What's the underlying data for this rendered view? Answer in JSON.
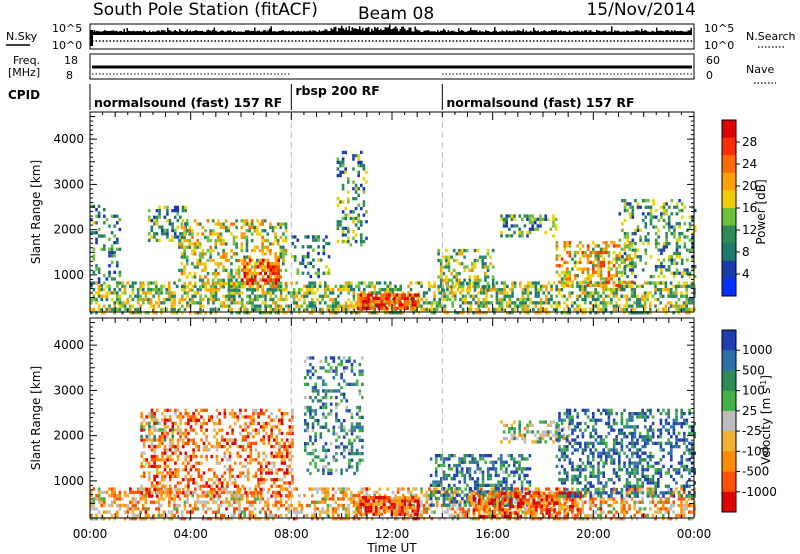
{
  "header": {
    "title": "South Pole Station (fitACF)",
    "beam": "Beam 08",
    "date": "15/Nov/2014"
  },
  "status_panels": {
    "nsky_label": "N.Sky",
    "nsky_tick_top": "10^5",
    "nsky_tick_bottom": "10^0",
    "nsearch_label": "N.Search",
    "nsearch_tick_top": "10^5",
    "nsearch_tick_bottom": "10^0",
    "freq_label_1": "Freq.",
    "freq_label_2": "[MHz]",
    "freq_tick_top": "18",
    "freq_tick_bottom": "8",
    "nave_label": "Nave",
    "nave_tick_top": "60",
    "nave_tick_bottom": "0",
    "cpid_label": "CPID"
  },
  "cpid_segments": [
    {
      "label": "normalsound (fast) 157 RF",
      "start_hour": 0,
      "end_hour": 8
    },
    {
      "label": "rbsp 200 RF",
      "start_hour": 8,
      "end_hour": 14
    },
    {
      "label": "normalsound (fast) 157 RF",
      "start_hour": 14,
      "end_hour": 24
    }
  ],
  "chart_data": [
    {
      "type": "heatmap",
      "panel": "power",
      "ylabel": "Slant Range [km]",
      "xlabel": "Time UT",
      "x_ticks": [
        "00:00",
        "04:00",
        "08:00",
        "12:00",
        "16:00",
        "20:00",
        "00:00"
      ],
      "xlim_hours": [
        0,
        24
      ],
      "ylim": [
        180,
        4600
      ],
      "y_ticks": [
        1000,
        2000,
        3000,
        4000
      ],
      "colorbar_label": "Power [dB]",
      "colorbar_ticks": [
        "28",
        "24",
        "20",
        "16",
        "12",
        "8",
        "4"
      ],
      "colorbar_colors": [
        "#e00000",
        "#ff3000",
        "#ff6a00",
        "#ffa000",
        "#f0cf00",
        "#6bbf3a",
        "#2e8b57",
        "#1e7a6c",
        "#1a3aa8",
        "#0030ff"
      ],
      "scatter_regions": [
        {
          "t0": 0.0,
          "t1": 24.0,
          "r0": 200,
          "r1": 900,
          "density": 0.55,
          "level": 0.45
        },
        {
          "t0": 0.0,
          "t1": 1.2,
          "r0": 800,
          "r1": 2600,
          "density": 0.25,
          "level": 0.3
        },
        {
          "t0": 2.3,
          "t1": 3.8,
          "r0": 1800,
          "r1": 2600,
          "density": 0.45,
          "level": 0.35
        },
        {
          "t0": 3.5,
          "t1": 7.8,
          "r0": 700,
          "r1": 2300,
          "density": 0.4,
          "level": 0.5
        },
        {
          "t0": 6.0,
          "t1": 7.5,
          "r0": 850,
          "r1": 1400,
          "density": 0.7,
          "level": 0.8
        },
        {
          "t0": 8.0,
          "t1": 9.5,
          "r0": 1000,
          "r1": 1900,
          "density": 0.3,
          "level": 0.3
        },
        {
          "t0": 9.8,
          "t1": 11.0,
          "r0": 1700,
          "r1": 3800,
          "density": 0.35,
          "level": 0.35
        },
        {
          "t0": 10.6,
          "t1": 13.0,
          "r0": 300,
          "r1": 650,
          "density": 0.85,
          "level": 0.85
        },
        {
          "t0": 13.8,
          "t1": 16.0,
          "r0": 700,
          "r1": 1600,
          "density": 0.4,
          "level": 0.45
        },
        {
          "t0": 16.3,
          "t1": 18.5,
          "r0": 1900,
          "r1": 2400,
          "density": 0.5,
          "level": 0.35
        },
        {
          "t0": 18.5,
          "t1": 21.5,
          "r0": 800,
          "r1": 1800,
          "density": 0.5,
          "level": 0.6
        },
        {
          "t0": 21.0,
          "t1": 24.0,
          "r0": 1000,
          "r1": 2700,
          "density": 0.35,
          "level": 0.35
        }
      ]
    },
    {
      "type": "heatmap",
      "panel": "velocity",
      "ylabel": "Slant Range [km]",
      "xlabel": "Time UT",
      "x_ticks": [
        "00:00",
        "04:00",
        "08:00",
        "12:00",
        "16:00",
        "20:00",
        "00:00"
      ],
      "xlim_hours": [
        0,
        24
      ],
      "ylim": [
        180,
        4600
      ],
      "y_ticks": [
        1000,
        2000,
        3000,
        4000
      ],
      "colorbar_label": "Velocity [m s^-1]",
      "colorbar_ticks": [
        "1000",
        "500",
        "100",
        "25",
        "-25",
        "-100",
        "-500",
        "-1000"
      ],
      "colorbar_colors": [
        "#1f3fb0",
        "#2d6fa8",
        "#2e8b57",
        "#45b045",
        "#bdbdbd",
        "#f0b030",
        "#ff8c00",
        "#ff5000",
        "#e00000"
      ],
      "scatter_regions": [
        {
          "t0": 0.0,
          "t1": 24.0,
          "r0": 200,
          "r1": 900,
          "density": 0.5,
          "level": 0.35
        },
        {
          "t0": 2.0,
          "t1": 8.0,
          "r0": 700,
          "r1": 2600,
          "density": 0.45,
          "level": 0.25
        },
        {
          "t0": 2.0,
          "t1": 3.5,
          "r0": 1800,
          "r1": 2500,
          "density": 0.3,
          "level": 0.55
        },
        {
          "t0": 8.5,
          "t1": 10.8,
          "r0": 1200,
          "r1": 3800,
          "density": 0.3,
          "level": 0.75
        },
        {
          "t0": 10.6,
          "t1": 13.0,
          "r0": 300,
          "r1": 700,
          "density": 0.85,
          "level": 0.2
        },
        {
          "t0": 13.5,
          "t1": 17.5,
          "r0": 500,
          "r1": 1600,
          "density": 0.5,
          "level": 0.8
        },
        {
          "t0": 16.3,
          "t1": 19.0,
          "r0": 1900,
          "r1": 2400,
          "density": 0.5,
          "level": 0.55
        },
        {
          "t0": 15.0,
          "t1": 19.5,
          "r0": 250,
          "r1": 800,
          "density": 0.6,
          "level": 0.2
        },
        {
          "t0": 18.5,
          "t1": 24.0,
          "r0": 700,
          "r1": 2600,
          "density": 0.45,
          "level": 0.82
        }
      ]
    }
  ]
}
